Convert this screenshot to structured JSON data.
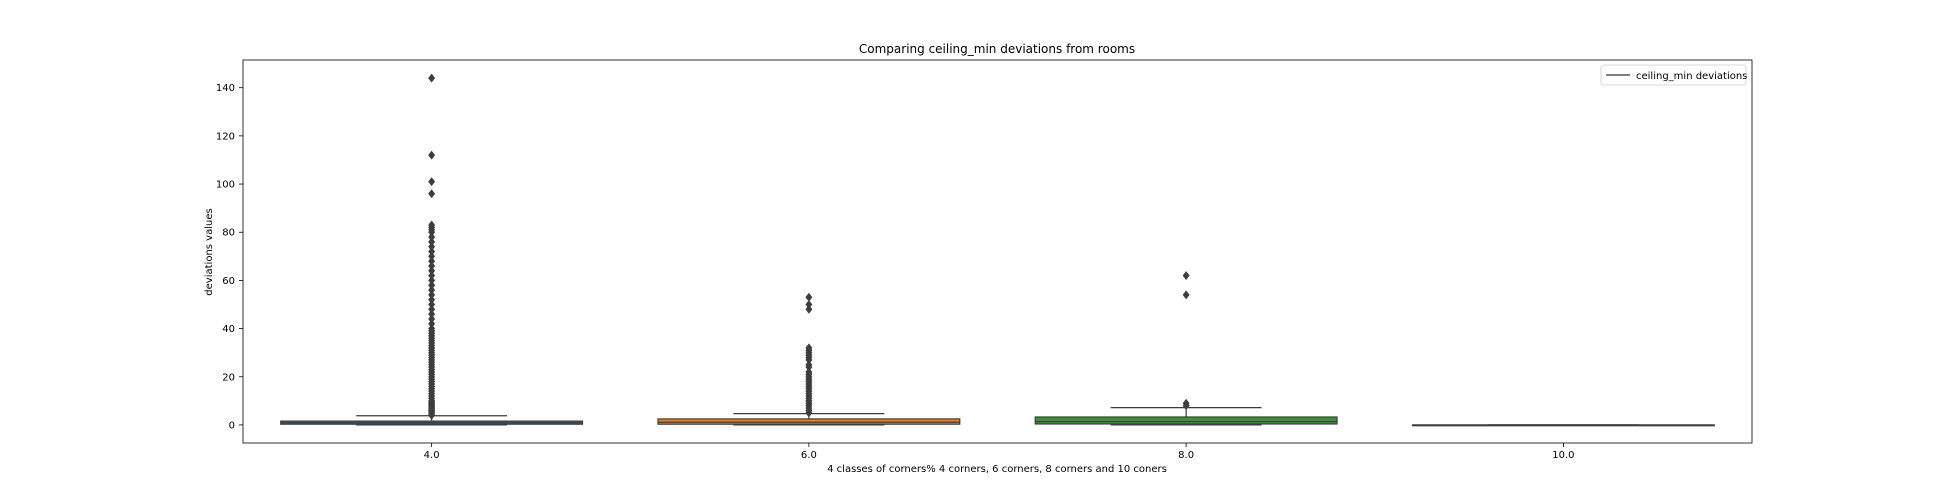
{
  "chart_data": {
    "type": "box",
    "title": "Comparing ceiling_min deviations from rooms",
    "xlabel": "4 classes of corners% 4 corners, 6 corners, 8 corners and 10 coners",
    "ylabel": "deviations values",
    "categories": [
      "4.0",
      "6.0",
      "8.0",
      "10.0"
    ],
    "ylim": [
      -7.5,
      151.5
    ],
    "yticks": [
      0,
      20,
      40,
      60,
      80,
      100,
      120,
      140
    ],
    "legend": {
      "label": "ceiling_min deviations",
      "position": "top-right"
    },
    "grid": false,
    "boxes": [
      {
        "category": "4.0",
        "color": "#3a6ea5",
        "whisker_low": 0.0,
        "q1": 0.3,
        "median": 0.9,
        "q3": 1.6,
        "whisker_high": 3.8,
        "outliers": [
          4,
          4.5,
          5,
          5.5,
          6,
          6.5,
          7,
          7.5,
          8,
          8.5,
          9,
          9.5,
          10,
          11,
          12,
          13,
          14,
          15,
          16,
          17,
          18,
          19,
          20,
          21,
          22,
          23,
          24,
          25,
          26,
          27,
          28,
          29,
          30,
          31,
          32,
          33,
          34,
          35,
          36,
          37,
          38,
          39,
          40,
          42,
          44,
          46,
          48,
          50,
          52,
          54,
          56,
          58,
          60,
          62,
          64,
          66,
          68,
          70,
          72,
          74,
          76,
          78,
          80,
          81,
          82,
          83,
          96,
          101,
          112,
          144
        ]
      },
      {
        "category": "6.0",
        "color": "#e1812c",
        "whisker_low": 0.0,
        "q1": 0.3,
        "median": 1.1,
        "q3": 2.5,
        "whisker_high": 4.7,
        "outliers": [
          5,
          6,
          7,
          8,
          9,
          10,
          11,
          12,
          13,
          14,
          15,
          16,
          17,
          18,
          19,
          20,
          21,
          22,
          24,
          25,
          27,
          28,
          29,
          30,
          31,
          32,
          48,
          50,
          53
        ]
      },
      {
        "category": "8.0",
        "color": "#3a923a",
        "whisker_low": 0.0,
        "q1": 0.4,
        "median": 1.4,
        "q3": 3.3,
        "whisker_high": 7.2,
        "outliers": [
          8,
          9,
          54,
          62
        ]
      },
      {
        "category": "10.0",
        "color": "#c03d3e",
        "whisker_low": 0.0,
        "q1": 0.0,
        "median": 0.0,
        "q3": 0.0,
        "whisker_high": 0.0,
        "outliers": []
      }
    ]
  }
}
